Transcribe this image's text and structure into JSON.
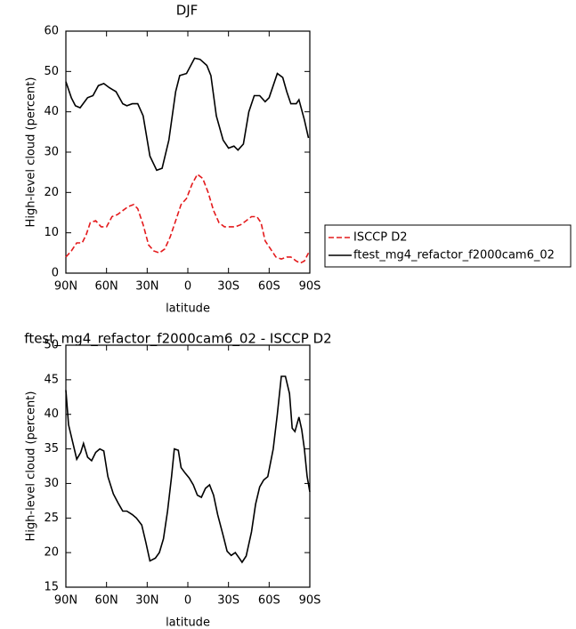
{
  "chart_data": [
    {
      "type": "line",
      "title": "DJF",
      "xlabel": "latitude",
      "ylabel": "High-level cloud (percent)",
      "xlim": [
        90,
        -90
      ],
      "xticks": [
        {
          "value": 90,
          "label": "90N"
        },
        {
          "value": 60,
          "label": "60N"
        },
        {
          "value": 30,
          "label": "30N"
        },
        0,
        {
          "value": -30,
          "label": "30S"
        },
        {
          "value": -60,
          "label": "60S"
        },
        {
          "value": -90,
          "label": "90S"
        }
      ],
      "ylim": [
        0,
        60
      ],
      "yticks": [
        0,
        10,
        20,
        30,
        40,
        50,
        60
      ],
      "legend": "right",
      "series": [
        {
          "name": "ISCCP D2",
          "color": "#e41a1c",
          "style": "dashed",
          "x": [
            90,
            86,
            82,
            78,
            75,
            72,
            68,
            64,
            60,
            56,
            52,
            48,
            44,
            40,
            37,
            33,
            29,
            25,
            21,
            17,
            13,
            9,
            5,
            1,
            -3,
            -7,
            -11,
            -15,
            -19,
            -23,
            -27,
            -31,
            -35,
            -39,
            -43,
            -47,
            -51,
            -54,
            -57,
            -61,
            -65,
            -69,
            -73,
            -76,
            -80,
            -83,
            -86,
            -89
          ],
          "values": [
            4,
            5.5,
            7.5,
            7.5,
            9.5,
            12.5,
            13,
            11.5,
            11.5,
            14,
            14.5,
            15.5,
            16.5,
            17,
            16,
            12,
            7,
            5.5,
            5,
            6,
            9,
            13,
            17,
            18.5,
            22,
            24.5,
            23.5,
            20,
            15.5,
            12.5,
            11.5,
            11.5,
            11.5,
            12,
            13,
            14,
            14,
            12.5,
            8,
            6,
            4,
            3.5,
            4,
            4,
            3,
            2.5,
            3,
            5
          ]
        },
        {
          "name": "ftest_mg4_refactor_f2000cam6_02",
          "color": "#000000",
          "style": "solid",
          "x": [
            90,
            86,
            83,
            79.5,
            74,
            70,
            66,
            62,
            58,
            53,
            48,
            45,
            41,
            37,
            33,
            28,
            23,
            19,
            14,
            9,
            6,
            1,
            -5,
            -9,
            -14,
            -17,
            -21,
            -26,
            -30,
            -34,
            -37,
            -41,
            -45,
            -49,
            -53,
            -57,
            -60,
            -66,
            -70,
            -73,
            -76,
            -80,
            -82,
            -86,
            -89
          ],
          "values": [
            47.5,
            43.5,
            41.5,
            41,
            43.5,
            44,
            46.5,
            47,
            46,
            45,
            42,
            41.5,
            42,
            42,
            39,
            29,
            25.5,
            26,
            33,
            45,
            49,
            49.5,
            53.3,
            53,
            51.5,
            49,
            39,
            33,
            31,
            31.5,
            30.5,
            32,
            40,
            44,
            44,
            42.5,
            43.5,
            49.5,
            48.5,
            45,
            42,
            42,
            43,
            38,
            33.5
          ]
        }
      ]
    },
    {
      "type": "line",
      "title": "ftest_mg4_refactor_f2000cam6_02 - ISCCP D2",
      "xlabel": "latitude",
      "ylabel": "High-level cloud (percent)",
      "xlim": [
        90,
        -90
      ],
      "xticks": [
        {
          "value": 90,
          "label": "90N"
        },
        {
          "value": 60,
          "label": "60N"
        },
        {
          "value": 30,
          "label": "30N"
        },
        0,
        {
          "value": -30,
          "label": "30S"
        },
        {
          "value": -60,
          "label": "60S"
        },
        {
          "value": -90,
          "label": "90S"
        }
      ],
      "ylim": [
        15,
        50
      ],
      "yticks": [
        15,
        20,
        25,
        30,
        35,
        40,
        45,
        50
      ],
      "color": "#000000",
      "x": [
        90,
        88,
        85,
        82,
        79,
        77,
        74,
        71,
        68,
        65,
        62,
        59,
        55,
        51,
        48,
        45,
        41,
        38,
        34,
        31,
        28,
        24,
        21,
        18,
        15,
        12,
        10,
        7,
        5,
        2,
        -1,
        -4,
        -7,
        -10,
        -13,
        -16,
        -19,
        -22,
        -26,
        -29,
        -32,
        -35,
        -38,
        -40,
        -43,
        -47,
        -50,
        -53,
        -56,
        -59,
        -63,
        -66,
        -69,
        -72,
        -75,
        -77,
        -79,
        -82,
        -84,
        -86,
        -88,
        -90
      ],
      "values": [
        43.5,
        38.5,
        36,
        33.5,
        34.5,
        35.8,
        33.8,
        33.3,
        34.5,
        35,
        34.7,
        31,
        28.5,
        27,
        26,
        26,
        25.5,
        25,
        24,
        21.5,
        18.8,
        19.2,
        20,
        22,
        26,
        31,
        35,
        34.8,
        32.3,
        31.5,
        30.8,
        29.8,
        28.3,
        28,
        29.3,
        29.8,
        28.3,
        25.5,
        22.5,
        20.2,
        19.6,
        20,
        19.2,
        18.6,
        19.5,
        23,
        27,
        29.5,
        30.5,
        31,
        35,
        40,
        45.5,
        45.5,
        43,
        38,
        37.5,
        39.6,
        37.8,
        35,
        31,
        28.8
      ]
    }
  ]
}
